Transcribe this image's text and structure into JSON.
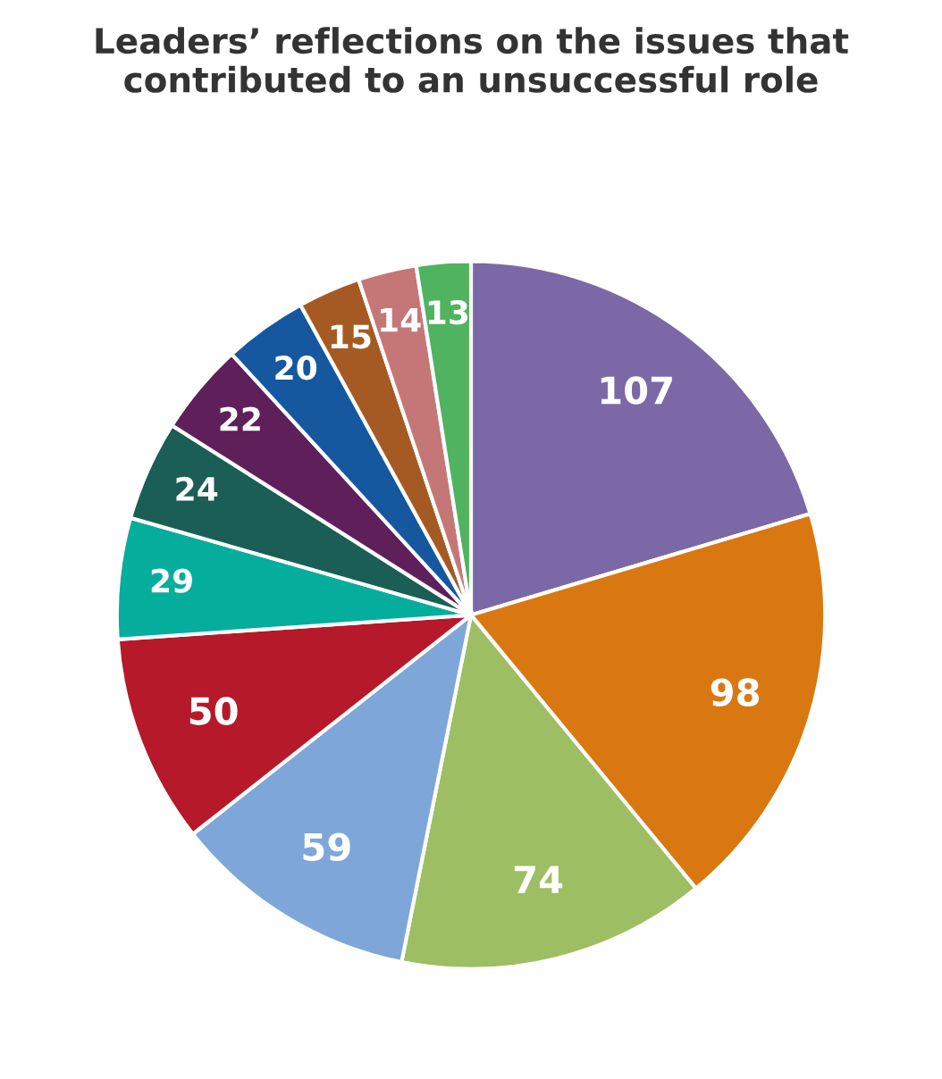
{
  "chart_data": {
    "type": "pie",
    "title": "Leaders’ reflections on the issues that\ncontributed to an unsuccessful role",
    "categories": [
      null,
      null,
      null,
      null,
      null,
      null,
      null,
      null,
      null,
      null,
      null,
      null
    ],
    "values": [
      107,
      98,
      74,
      59,
      50,
      29,
      24,
      22,
      20,
      15,
      14,
      13
    ],
    "colors": [
      "#7b68a6",
      "#d97811",
      "#9dbe62",
      "#7ea6d8",
      "#b5192a",
      "#05ad9c",
      "#1a5e55",
      "#5e1f5a",
      "#1558a0",
      "#a65a23",
      "#c57778",
      "#4fb35f"
    ],
    "data_labels": true
  }
}
